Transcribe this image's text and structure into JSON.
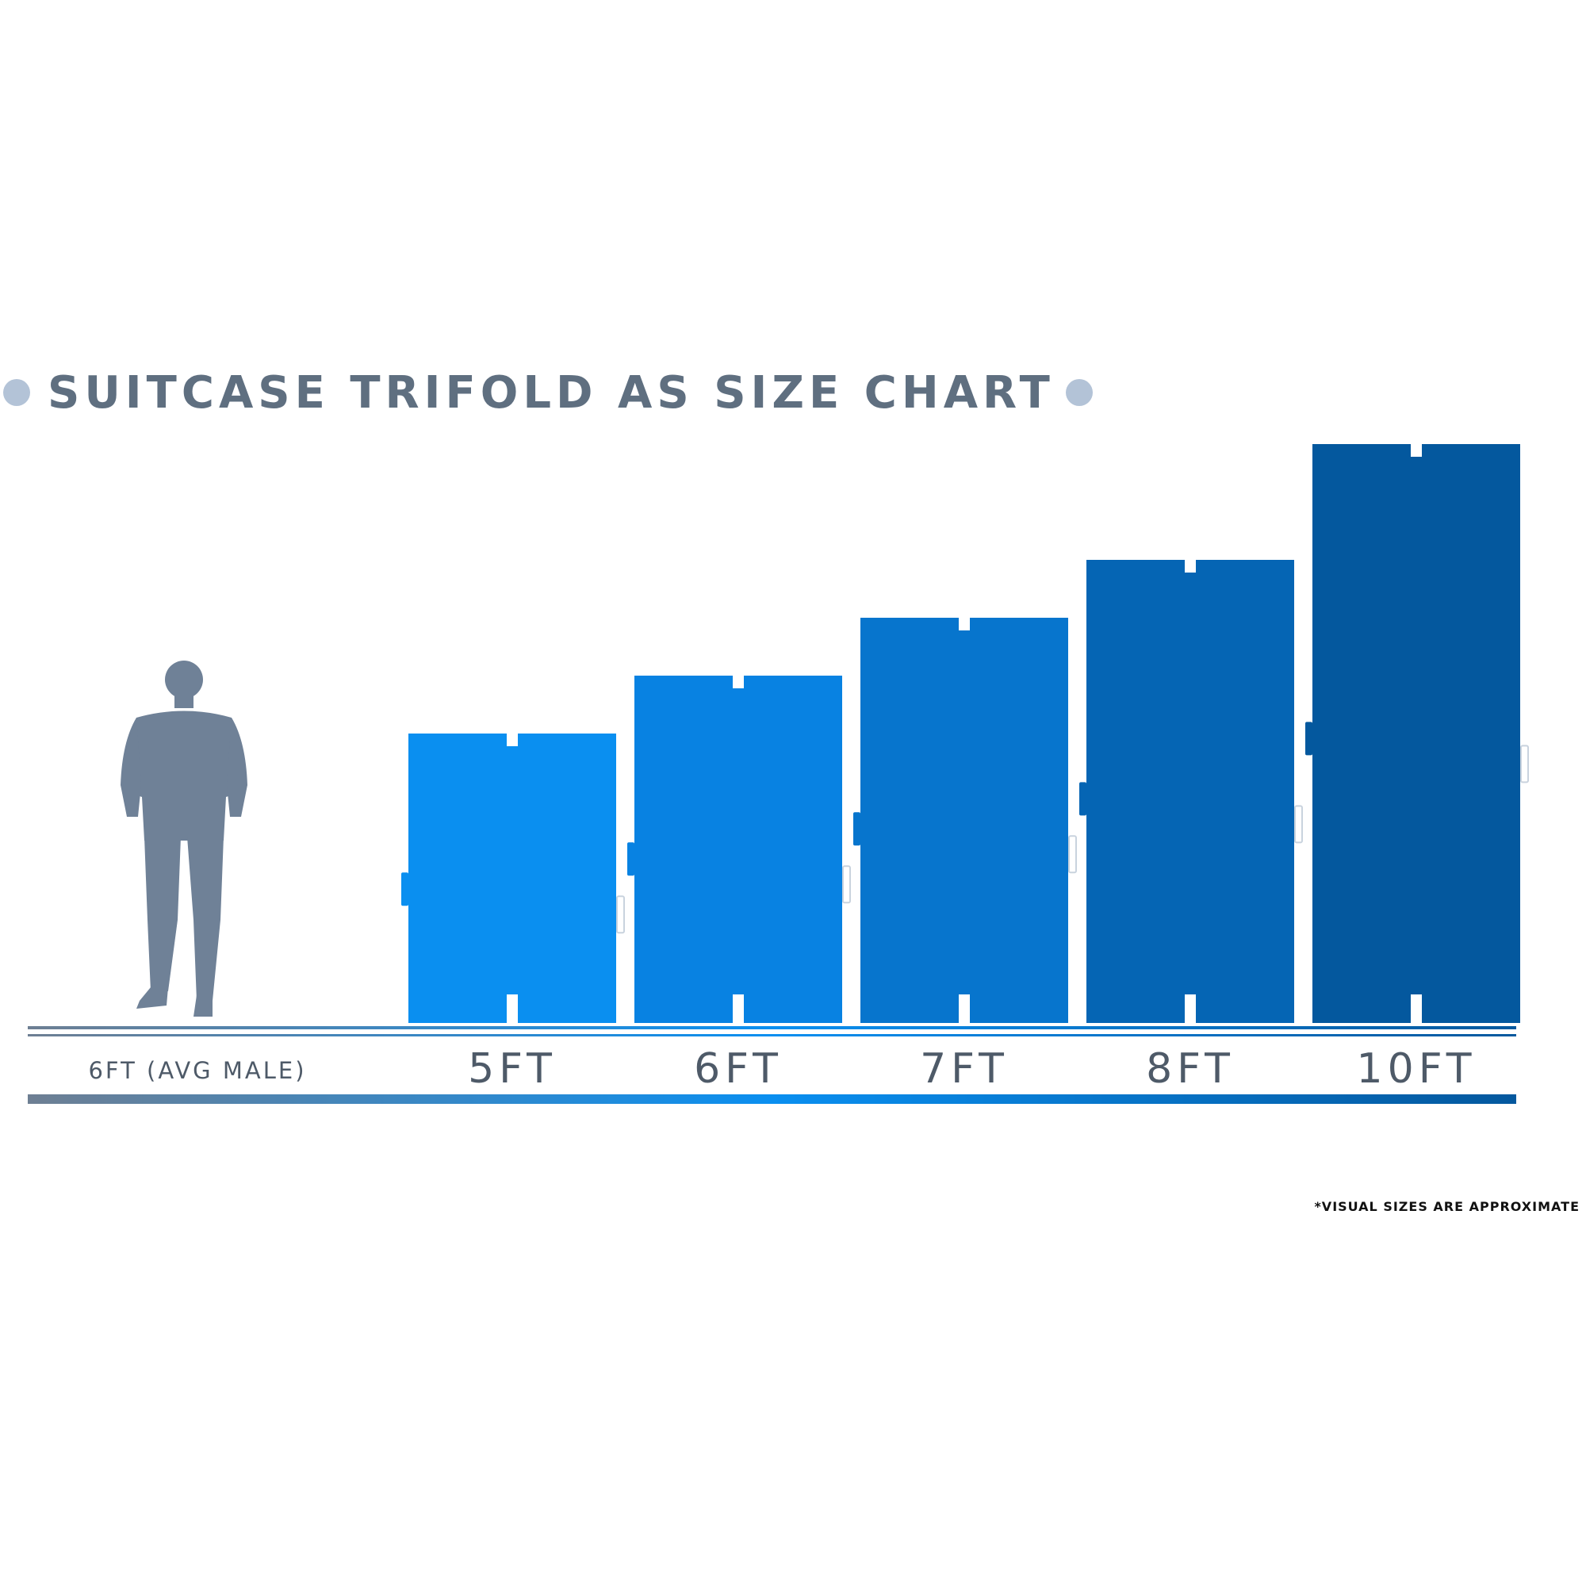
{
  "title": "SUITCASE TRIFOLD AS SIZE CHART",
  "footnote": "*VISUAL SIZES ARE APPROXIMATE",
  "colors": {
    "title_text": "#5f6f80",
    "title_dots": "#b3c3d7",
    "person": "#6f8197",
    "label_text": "#4e5a68",
    "baseline": "#6e7f93"
  },
  "chart_data": {
    "type": "bar",
    "title": "SUITCASE TRIFOLD AS SIZE CHART",
    "units": "FT",
    "reference": {
      "label": "6FT (AVG MALE)",
      "value": 6,
      "icon": "person-silhouette-icon"
    },
    "categories": [
      "5FT",
      "6FT",
      "7FT",
      "8FT",
      "10FT"
    ],
    "values": [
      5,
      6,
      7,
      8,
      10
    ],
    "bar_colors": [
      "#0a8ff0",
      "#0882e2",
      "#0775cd",
      "#0565b4",
      "#04589e"
    ],
    "annotation": "*VISUAL SIZES ARE APPROXIMATE",
    "grid": false,
    "legend": "none"
  }
}
